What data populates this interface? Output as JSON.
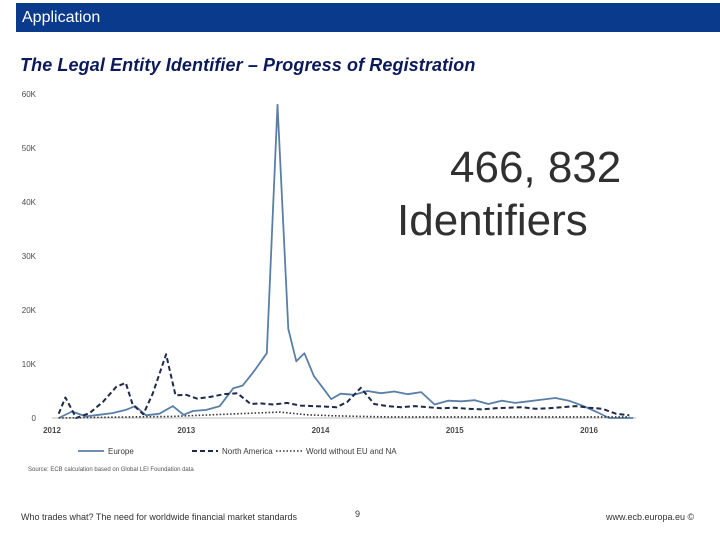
{
  "header": {
    "app_label": "Application",
    "bar_color": "#0a3a8c"
  },
  "slide": {
    "title": "The Legal Entity Identifier – Progress of Registration",
    "big_number": "466, 832",
    "big_label": "Identifiers"
  },
  "footer": {
    "left": "Who trades what? The need for worldwide financial market standards",
    "page": "9",
    "right": "www.ecb.europa.eu ©"
  },
  "chart_data": {
    "type": "line",
    "ylim": [
      0,
      60000
    ],
    "yticks": [
      0,
      10000,
      20000,
      30000,
      40000,
      50000,
      60000
    ],
    "ytick_labels": [
      "0",
      "10K",
      "20K",
      "30K",
      "40K",
      "50K",
      "60K"
    ],
    "xlim": [
      2012,
      2016.35
    ],
    "xticks": [
      2012,
      2013,
      2014,
      2015,
      2016
    ],
    "xtick_labels": [
      "2012",
      "2013",
      "2014",
      "2015",
      "2016"
    ],
    "grid": false,
    "legend": "bottom",
    "source": "Source: ECB calculation based on Global LEI Foundation data",
    "series": [
      {
        "name": "Europe",
        "color": "#5a7fa6",
        "style": "solid",
        "x": [
          2012.05,
          2012.15,
          2012.25,
          2012.35,
          2012.45,
          2012.55,
          2012.62,
          2012.7,
          2012.8,
          2012.9,
          2012.98,
          2013.05,
          2013.15,
          2013.25,
          2013.35,
          2013.42,
          2013.5,
          2013.6,
          2013.68,
          2013.76,
          2013.82,
          2013.88,
          2013.95,
          2014.02,
          2014.08,
          2014.15,
          2014.25,
          2014.35,
          2014.45,
          2014.55,
          2014.65,
          2014.75,
          2014.85,
          2014.95,
          2015.05,
          2015.15,
          2015.25,
          2015.35,
          2015.45,
          2015.55,
          2015.65,
          2015.75,
          2015.85,
          2015.95,
          2016.05,
          2016.15,
          2016.25,
          2016.33
        ],
        "values": [
          0,
          1200,
          300,
          600,
          900,
          1500,
          2200,
          500,
          800,
          2200,
          600,
          1300,
          1500,
          2200,
          5500,
          6000,
          8500,
          12000,
          58000,
          16500,
          10500,
          12000,
          7800,
          5500,
          3500,
          4500,
          4300,
          5000,
          4600,
          4900,
          4400,
          4800,
          2500,
          3200,
          3100,
          3300,
          2600,
          3200,
          2800,
          3100,
          3400,
          3700,
          3200,
          2300,
          1200,
          0,
          0,
          0
        ]
      },
      {
        "name": "North America",
        "color": "#1e2a4a",
        "style": "dashed",
        "x": [
          2012.05,
          2012.1,
          2012.18,
          2012.28,
          2012.38,
          2012.48,
          2012.55,
          2012.6,
          2012.68,
          2012.75,
          2012.85,
          2012.92,
          2013.0,
          2013.08,
          2013.18,
          2013.28,
          2013.38,
          2013.48,
          2013.55,
          2013.65,
          2013.75,
          2013.85,
          2013.95,
          2014.05,
          2014.12,
          2014.2,
          2014.3,
          2014.4,
          2014.5,
          2014.6,
          2014.7,
          2014.8,
          2014.9,
          2015.0,
          2015.1,
          2015.2,
          2015.3,
          2015.4,
          2015.5,
          2015.6,
          2015.7,
          2015.8,
          2015.9,
          2016.0,
          2016.1,
          2016.2,
          2016.3
        ],
        "values": [
          800,
          3800,
          0,
          900,
          3000,
          5800,
          6500,
          2500,
          700,
          4500,
          11800,
          4200,
          4300,
          3600,
          3900,
          4400,
          4600,
          2600,
          2700,
          2500,
          2800,
          2300,
          2200,
          2100,
          2000,
          3000,
          5600,
          2600,
          2200,
          2000,
          2200,
          2000,
          1800,
          1900,
          1700,
          1600,
          1800,
          1900,
          2000,
          1700,
          1800,
          2000,
          2200,
          1900,
          1700,
          800,
          500
        ]
      },
      {
        "name": "World without EU and NA",
        "color": "#333333",
        "style": "dotted",
        "x": [
          2012.05,
          2012.3,
          2012.6,
          2012.9,
          2013.1,
          2013.3,
          2013.5,
          2013.7,
          2013.9,
          2014.1,
          2014.3,
          2014.5,
          2014.7,
          2014.9,
          2015.1,
          2015.3,
          2015.5,
          2015.7,
          2015.9,
          2016.1,
          2016.3
        ],
        "values": [
          0,
          100,
          200,
          300,
          500,
          700,
          900,
          1100,
          600,
          400,
          300,
          200,
          200,
          200,
          200,
          200,
          200,
          200,
          200,
          200,
          200
        ]
      }
    ]
  }
}
